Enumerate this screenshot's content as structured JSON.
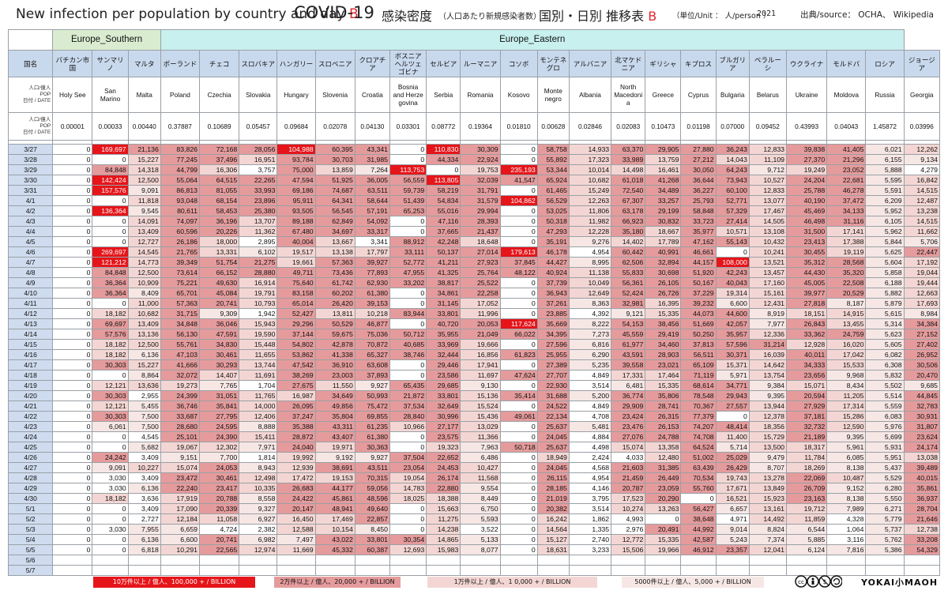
{
  "title": {
    "en": "New infection per population by country and day",
    "en_suffix": "B",
    "covid": "COVID-19",
    "jp": "感染密度",
    "jp_note": "（人口あたり新規感染者数）",
    "jp2": "国別・日別 推移表",
    "jp2_suffix": "B",
    "unit": "（単位/Unit ： 人/person ）",
    "year": "2021",
    "source": "出典/source： OCHA、 Wikipedia"
  },
  "regions": [
    {
      "name": "",
      "span": 1
    },
    {
      "name": "Europe_Southern",
      "span": 3
    },
    {
      "name": "Europe_Eastern",
      "span": 20
    }
  ],
  "row_labels": {
    "country_jp": "国名",
    "country_en_lines": [
      "人口/億人",
      "POP",
      "日付 / DATE"
    ],
    "pop_lines": [
      "人口/億人",
      "POP",
      "日付 / DATE"
    ]
  },
  "countries_jp": [
    "バチカン市国",
    "サンマリノ",
    "マルタ",
    "ポーランド",
    "チェコ",
    "スロバキア",
    "ハンガリー",
    "スロベニア",
    "クロアチア",
    "ボスニアヘルツェゴビナ",
    "セルビア",
    "ルーマニア",
    "コソボ",
    "モンテネグロ",
    "アルバニア",
    "北マケドニア",
    "ギリシャ",
    "キプロス",
    "ブルガリア",
    "ベラルーシ",
    "ウクライナ",
    "モルドバ",
    "ロシア",
    "ジョージア"
  ],
  "countries_en": [
    "Holy See",
    "San Marino",
    "Malta",
    "Poland",
    "Czechia",
    "Slovakia",
    "Hungary",
    "Slovenia",
    "Croatia",
    "Bosnia and Herze govina",
    "Serbia",
    "Romania",
    "Kosovo",
    "Monte negro",
    "Albania",
    "North Macedoni a",
    "Greece",
    "Cyprus",
    "Bulgaria",
    "Belarus",
    "Ukraine",
    "Moldova",
    "Russia",
    "Georgia"
  ],
  "population": [
    "0.00001",
    "0.00033",
    "0.00440",
    "0.37887",
    "0.10689",
    "0.05457",
    "0.09684",
    "0.02078",
    "0.04130",
    "0.03301",
    "0.08772",
    "0.19364",
    "0.01810",
    "0.00628",
    "0.02846",
    "0.02083",
    "0.10473",
    "0.01198",
    "0.07000",
    "0.09452",
    "0.43993",
    "0.04043",
    "1.45872",
    "0.03996"
  ],
  "dates": [
    "3/27",
    "3/28",
    "3/29",
    "3/30",
    "3/31",
    "4/1",
    "4/2",
    "4/3",
    "4/4",
    "4/5",
    "4/6",
    "4/7",
    "4/8",
    "4/9",
    "4/10",
    "4/11",
    "4/12",
    "4/13",
    "4/14",
    "4/15",
    "4/16",
    "4/17",
    "4/18",
    "4/19",
    "4/20",
    "4/21",
    "4/22",
    "4/23",
    "4/24",
    "4/25",
    "4/26",
    "4/27",
    "4/28",
    "4/29",
    "4/30",
    "5/1",
    "5/2",
    "5/3",
    "5/4",
    "5/5",
    "5/6",
    "5/7"
  ],
  "rows": [
    [
      "0",
      "169,697",
      "21,136",
      "83,826",
      "72,168",
      "28,056",
      "104,988",
      "60,395",
      "43,341",
      "0",
      "110,830",
      "30,309",
      "0",
      "58,758",
      "14,933",
      "63,370",
      "29,905",
      "27,880",
      "36,243",
      "12,833",
      "39,838",
      "41,405",
      "6,021",
      "12,262"
    ],
    [
      "0",
      "0",
      "15,227",
      "77,245",
      "37,496",
      "16,951",
      "93,784",
      "30,703",
      "31,985",
      "0",
      "44,334",
      "22,924",
      "0",
      "55,892",
      "17,323",
      "33,989",
      "13,759",
      "27,212",
      "14,043",
      "11,109",
      "27,370",
      "21,296",
      "6,155",
      "9,134"
    ],
    [
      "0",
      "84,848",
      "14,318",
      "44,799",
      "16,306",
      "3,757",
      "75,000",
      "13,859",
      "7,264",
      "113,753",
      "0",
      "19,753",
      "235,193",
      "53,344",
      "10,014",
      "14,498",
      "16,461",
      "30,050",
      "64,243",
      "9,712",
      "19,249",
      "23,052",
      "5,888",
      "4,279"
    ],
    [
      "0",
      "142,424",
      "12,500",
      "55,064",
      "64,515",
      "22,265",
      "47,594",
      "51,925",
      "36,005",
      "56,559",
      "113,805",
      "32,039",
      "41,547",
      "65,924",
      "10,682",
      "61,018",
      "41,268",
      "36,644",
      "73,943",
      "10,527",
      "24,204",
      "22,681",
      "5,595",
      "16,842"
    ],
    [
      "0",
      "157,576",
      "9,091",
      "86,813",
      "81,055",
      "33,993",
      "69,186",
      "74,687",
      "63,511",
      "59,739",
      "58,219",
      "31,791",
      "0",
      "61,465",
      "15,249",
      "72,540",
      "34,489",
      "36,227",
      "60,100",
      "12,833",
      "25,788",
      "46,278",
      "5,591",
      "14,515"
    ],
    [
      "0",
      "0",
      "11,818",
      "93,048",
      "68,154",
      "23,896",
      "95,911",
      "64,341",
      "58,644",
      "51,439",
      "54,834",
      "31,579",
      "104,862",
      "56,529",
      "12,263",
      "67,307",
      "33,257",
      "25,793",
      "52,771",
      "13,077",
      "40,190",
      "37,472",
      "6,209",
      "12,487"
    ],
    [
      "0",
      "136,364",
      "9,545",
      "80,611",
      "58,453",
      "25,380",
      "93,505",
      "56,545",
      "57,191",
      "65,253",
      "55,016",
      "29,994",
      "0",
      "53,025",
      "11,806",
      "63,178",
      "29,199",
      "58,848",
      "57,329",
      "17,467",
      "45,469",
      "34,133",
      "5,952",
      "13,238"
    ],
    [
      "0",
      "0",
      "14,091",
      "74,097",
      "36,196",
      "13,707",
      "89,188",
      "62,849",
      "54,092",
      "0",
      "47,116",
      "28,393",
      "0",
      "50,318",
      "11,982",
      "66,923",
      "30,832",
      "33,723",
      "27,414",
      "14,505",
      "46,498",
      "31,116",
      "6,105",
      "14,515"
    ],
    [
      "0",
      "0",
      "13,409",
      "60,596",
      "20,226",
      "11,362",
      "67,480",
      "34,697",
      "33,317",
      "0",
      "37,665",
      "21,437",
      "0",
      "47,293",
      "12,228",
      "35,180",
      "18,667",
      "35,977",
      "10,571",
      "13,108",
      "31,500",
      "17,141",
      "5,962",
      "11,662"
    ],
    [
      "0",
      "0",
      "12,727",
      "26,186",
      "18,000",
      "2,895",
      "40,004",
      "13,667",
      "3,341",
      "88,912",
      "42,248",
      "18,648",
      "0",
      "35,191",
      "9,276",
      "14,402",
      "17,789",
      "47,162",
      "55,143",
      "10,432",
      "23,413",
      "17,388",
      "5,844",
      "5,706"
    ],
    [
      "0",
      "269,697",
      "14,545",
      "21,765",
      "13,331",
      "6,102",
      "19,517",
      "13,138",
      "17,797",
      "33,111",
      "50,137",
      "27,014",
      "179,613",
      "46,178",
      "4,954",
      "60,442",
      "40,991",
      "46,661",
      "0",
      "10,241",
      "30,455",
      "19,119",
      "5,625",
      "22,447"
    ],
    [
      "0",
      "121,212",
      "14,773",
      "39,349",
      "51,754",
      "21,275",
      "19,661",
      "57,363",
      "39,927",
      "52,772",
      "41,211",
      "27,923",
      "37,845",
      "44,427",
      "8,995",
      "62,506",
      "32,894",
      "44,157",
      "108,000",
      "13,521",
      "35,312",
      "28,568",
      "5,604",
      "17,192"
    ],
    [
      "0",
      "84,848",
      "12,500",
      "73,614",
      "66,152",
      "28,880",
      "49,711",
      "73,436",
      "77,893",
      "47,955",
      "41,325",
      "25,764",
      "48,122",
      "40,924",
      "11,138",
      "55,833",
      "30,698",
      "51,920",
      "42,243",
      "13,457",
      "44,430",
      "35,320",
      "5,858",
      "19,044"
    ],
    [
      "0",
      "36,364",
      "10,909",
      "75,221",
      "49,630",
      "16,914",
      "75,640",
      "61,742",
      "62,930",
      "33,202",
      "38,817",
      "25,522",
      "0",
      "37,739",
      "10,049",
      "56,361",
      "26,105",
      "50,167",
      "40,043",
      "17,160",
      "45,005",
      "22,508",
      "6,188",
      "19,444"
    ],
    [
      "0",
      "36,364",
      "8,409",
      "65,701",
      "45,084",
      "19,791",
      "83,158",
      "60,202",
      "61,380",
      "0",
      "34,861",
      "22,258",
      "0",
      "36,943",
      "12,649",
      "52,424",
      "26,726",
      "37,229",
      "19,314",
      "15,161",
      "39,977",
      "20,529",
      "5,882",
      "12,663"
    ],
    [
      "0",
      "0",
      "11,000",
      "57,363",
      "20,741",
      "10,793",
      "65,014",
      "26,420",
      "39,153",
      "0",
      "31,145",
      "17,052",
      "0",
      "37,261",
      "8,363",
      "32,981",
      "16,395",
      "39,232",
      "6,600",
      "12,431",
      "27,818",
      "8,187",
      "5,879",
      "17,693"
    ],
    [
      "0",
      "18,182",
      "10,682",
      "31,715",
      "9,309",
      "1,942",
      "52,427",
      "13,811",
      "10,218",
      "83,944",
      "33,801",
      "11,996",
      "0",
      "23,885",
      "4,392",
      "9,121",
      "15,335",
      "44,073",
      "44,600",
      "8,919",
      "18,151",
      "14,915",
      "5,615",
      "8,984"
    ],
    [
      "0",
      "69,697",
      "13,409",
      "34,848",
      "36,046",
      "15,943",
      "29,296",
      "50,529",
      "46,877",
      "0",
      "40,720",
      "20,053",
      "117,624",
      "35,669",
      "8,222",
      "54,153",
      "38,456",
      "51,669",
      "42,057",
      "7,977",
      "26,843",
      "13,455",
      "5,314",
      "34,384"
    ],
    [
      "0",
      "57,576",
      "13,136",
      "56,130",
      "47,591",
      "19,590",
      "37,144",
      "59,675",
      "75,036",
      "50,712",
      "35,955",
      "21,049",
      "66,022",
      "34,395",
      "7,273",
      "45,559",
      "29,419",
      "50,250",
      "35,957",
      "12,336",
      "33,362",
      "24,759",
      "5,623",
      "27,152"
    ],
    [
      "0",
      "18,182",
      "12,500",
      "55,761",
      "34,830",
      "15,448",
      "54,802",
      "42,878",
      "70,872",
      "40,685",
      "33,969",
      "19,666",
      "0",
      "27,596",
      "6,816",
      "61,977",
      "34,460",
      "37,813",
      "57,596",
      "31,214",
      "12,928",
      "16,020",
      "5,605",
      "27,402"
    ],
    [
      "0",
      "18,182",
      "6,136",
      "47,103",
      "30,461",
      "11,655",
      "53,862",
      "41,338",
      "65,327",
      "38,746",
      "32,444",
      "16,856",
      "61,823",
      "25,955",
      "6,290",
      "43,591",
      "28,903",
      "56,511",
      "30,371",
      "16,039",
      "40,011",
      "17,042",
      "6,082",
      "26,952"
    ],
    [
      "0",
      "30,303",
      "15,227",
      "41,666",
      "30,293",
      "13,744",
      "47,542",
      "36,910",
      "63,608",
      "0",
      "29,446",
      "17,941",
      "0",
      "27,389",
      "5,235",
      "39,558",
      "23,021",
      "65,109",
      "15,371",
      "14,642",
      "34,333",
      "15,533",
      "6,308",
      "30,506"
    ],
    [
      "0",
      "0",
      "8,864",
      "32,072",
      "14,407",
      "11,691",
      "38,269",
      "23,003",
      "37,893",
      "0",
      "23,586",
      "11,697",
      "47,624",
      "27,707",
      "4,849",
      "17,331",
      "17,464",
      "71,119",
      "5,971",
      "13,754",
      "23,656",
      "9,968",
      "5,832",
      "20,470"
    ],
    [
      "0",
      "12,121",
      "13,636",
      "19,273",
      "7,765",
      "1,704",
      "27,675",
      "11,550",
      "9,927",
      "65,435",
      "29,685",
      "9,130",
      "0",
      "22,930",
      "3,514",
      "6,481",
      "15,335",
      "68,614",
      "34,771",
      "9,384",
      "15,071",
      "8,434",
      "5,502",
      "9,685"
    ],
    [
      "0",
      "30,303",
      "2,955",
      "24,399",
      "31,051",
      "11,765",
      "16,987",
      "34,649",
      "50,993",
      "21,872",
      "33,801",
      "15,136",
      "35,414",
      "31,688",
      "5,200",
      "36,774",
      "35,806",
      "78,548",
      "29,943",
      "9,395",
      "20,594",
      "11,205",
      "5,514",
      "44,845"
    ],
    [
      "0",
      "12,121",
      "5,455",
      "36,746",
      "35,841",
      "14,000",
      "26,095",
      "49,856",
      "75,472",
      "37,534",
      "32,649",
      "15,524",
      "0",
      "24,522",
      "4,849",
      "29,909",
      "28,741",
      "70,367",
      "27,557",
      "13,944",
      "27,929",
      "17,314",
      "5,559",
      "32,783"
    ],
    [
      "0",
      "30,303",
      "7,500",
      "33,687",
      "27,795",
      "12,406",
      "37,247",
      "35,804",
      "69,855",
      "28,840",
      "30,996",
      "15,436",
      "49,061",
      "22,134",
      "4,708",
      "23,424",
      "26,315",
      "77,379",
      "0",
      "12,378",
      "37,181",
      "15,286",
      "6,083",
      "30,931"
    ],
    [
      "0",
      "6,061",
      "7,500",
      "28,680",
      "24,595",
      "8,888",
      "35,388",
      "43,311",
      "61,235",
      "10,966",
      "27,177",
      "13,029",
      "0",
      "25,637",
      "5,481",
      "23,476",
      "26,153",
      "74,207",
      "48,414",
      "18,356",
      "32,732",
      "12,590",
      "5,976",
      "31,807"
    ],
    [
      "0",
      "0",
      "4,545",
      "25,101",
      "24,390",
      "15,411",
      "28,872",
      "43,407",
      "61,380",
      "0",
      "23,575",
      "11,366",
      "0",
      "24,045",
      "4,884",
      "27,076",
      "24,788",
      "74,708",
      "11,400",
      "15,729",
      "21,189",
      "9,395",
      "5,699",
      "23,624"
    ],
    [
      "0",
      "0",
      "5,682",
      "19,067",
      "12,302",
      "7,971",
      "24,040",
      "19,971",
      "30,363",
      "0",
      "19,323",
      "7,963",
      "50,718",
      "25,637",
      "4,498",
      "15,074",
      "13,358",
      "64,524",
      "5,714",
      "13,500",
      "18,317",
      "5,961",
      "5,931",
      "24,174"
    ],
    [
      "0",
      "24,242",
      "3,409",
      "9,151",
      "7,700",
      "1,814",
      "19,992",
      "9,192",
      "9,927",
      "37,504",
      "22,652",
      "6,486",
      "0",
      "18,949",
      "2,424",
      "4,033",
      "12,480",
      "51,002",
      "25,029",
      "9,479",
      "11,784",
      "6,085",
      "5,951",
      "13,038"
    ],
    [
      "0",
      "9,091",
      "10,227",
      "15,074",
      "24,053",
      "8,943",
      "12,939",
      "38,691",
      "43,511",
      "23,054",
      "24,453",
      "10,427",
      "0",
      "24,045",
      "4,568",
      "21,603",
      "31,385",
      "63,439",
      "26,429",
      "8,707",
      "18,269",
      "8,138",
      "5,437",
      "39,489"
    ],
    [
      "0",
      "3,030",
      "3,409",
      "23,472",
      "30,461",
      "12,498",
      "17,472",
      "19,153",
      "70,315",
      "19,054",
      "26,174",
      "11,568",
      "0",
      "26,115",
      "4,954",
      "21,459",
      "26,449",
      "70,534",
      "19,743",
      "13,278",
      "22,069",
      "10,487",
      "5,529",
      "40,015"
    ],
    [
      "0",
      "3,030",
      "6,136",
      "22,240",
      "23,417",
      "10,335",
      "26,683",
      "44,177",
      "59,056",
      "14,783",
      "22,880",
      "9,554",
      "0",
      "28,185",
      "4,146",
      "20,787",
      "23,059",
      "55,760",
      "17,671",
      "13,849",
      "26,709",
      "9,152",
      "6,280",
      "35,861"
    ],
    [
      "0",
      "18,182",
      "3,636",
      "17,919",
      "20,788",
      "8,558",
      "24,422",
      "45,861",
      "48,596",
      "18,025",
      "18,388",
      "8,449",
      "0",
      "21,019",
      "3,795",
      "17,523",
      "20,290",
      "0",
      "16,521",
      "15,923",
      "23,163",
      "8,138",
      "5,550",
      "36,937"
    ],
    [
      "0",
      "0",
      "3,409",
      "17,090",
      "20,339",
      "9,327",
      "20,147",
      "48,941",
      "49,640",
      "0",
      "15,663",
      "6,750",
      "0",
      "20,382",
      "3,514",
      "10,274",
      "13,263",
      "56,427",
      "6,657",
      "13,161",
      "19,712",
      "7,989",
      "6,271",
      "28,704"
    ],
    [
      "0",
      "0",
      "2,727",
      "12,184",
      "11,058",
      "6,927",
      "16,450",
      "17,469",
      "22,857",
      "0",
      "11,275",
      "5,593",
      "0",
      "16,242",
      "1,862",
      "4,993",
      "0",
      "38,648",
      "4,971",
      "14,492",
      "11,859",
      "4,328",
      "5,779",
      "21,646"
    ],
    [
      "0",
      "3,030",
      "7,955",
      "6,659",
      "4,724",
      "2,382",
      "12,588",
      "10,154",
      "8,450",
      "0",
      "14,238",
      "3,522",
      "0",
      "14,564",
      "1,335",
      "2,976",
      "20,491",
      "44,992",
      "9,014",
      "8,824",
      "6,544",
      "1,064",
      "5,737",
      "12,738"
    ],
    [
      "0",
      "0",
      "6,136",
      "6,600",
      "20,741",
      "6,982",
      "7,497",
      "43,022",
      "33,801",
      "30,354",
      "14,865",
      "5,133",
      "0",
      "15,127",
      "2,740",
      "12,772",
      "15,335",
      "42,587",
      "5,243",
      "7,374",
      "5,885",
      "3,116",
      "5,762",
      "33,208"
    ],
    [
      "0",
      "0",
      "6,818",
      "10,291",
      "22,565",
      "12,974",
      "11,669",
      "45,332",
      "60,387",
      "12,693",
      "15,983",
      "8,077",
      "0",
      "18,631",
      "3,233",
      "15,506",
      "19,966",
      "46,912",
      "23,357",
      "12,041",
      "6,124",
      "7,816",
      "5,386",
      "54,329"
    ],
    [
      "",
      "",
      "",
      "",
      "",
      "",
      "",
      "",
      "",
      "",
      "",
      "",
      "",
      "",
      "",
      "",
      "",
      "",
      "",
      "",
      "",
      "",
      "",
      ""
    ],
    [
      "",
      "",
      "",
      "",
      "",
      "",
      "",
      "",
      "",
      "",
      "",
      "",
      "",
      "",
      "",
      "",
      "",
      "",
      "",
      "",
      "",
      "",
      "",
      ""
    ]
  ],
  "legend": {
    "l4": "10万件以上 / 億人、100,000 + / BILLION",
    "l3": "2万件以上 / 億人、20,000 + / BILLION",
    "l2": "1万件以上 / 億人、1 0,000 + / BILLION",
    "l1": "5000件以上 / 億人、5,000 + / BILLION"
  },
  "legend_colors": {
    "l4": "#e5151a",
    "l3": "#e59b9c",
    "l2": "#f3d6d3",
    "l1": "#f6e7e5"
  },
  "brand": "YOKAI小MAOH",
  "license_icons": [
    "cc-icon",
    "by-icon",
    "nc-icon",
    "sa-icon"
  ]
}
